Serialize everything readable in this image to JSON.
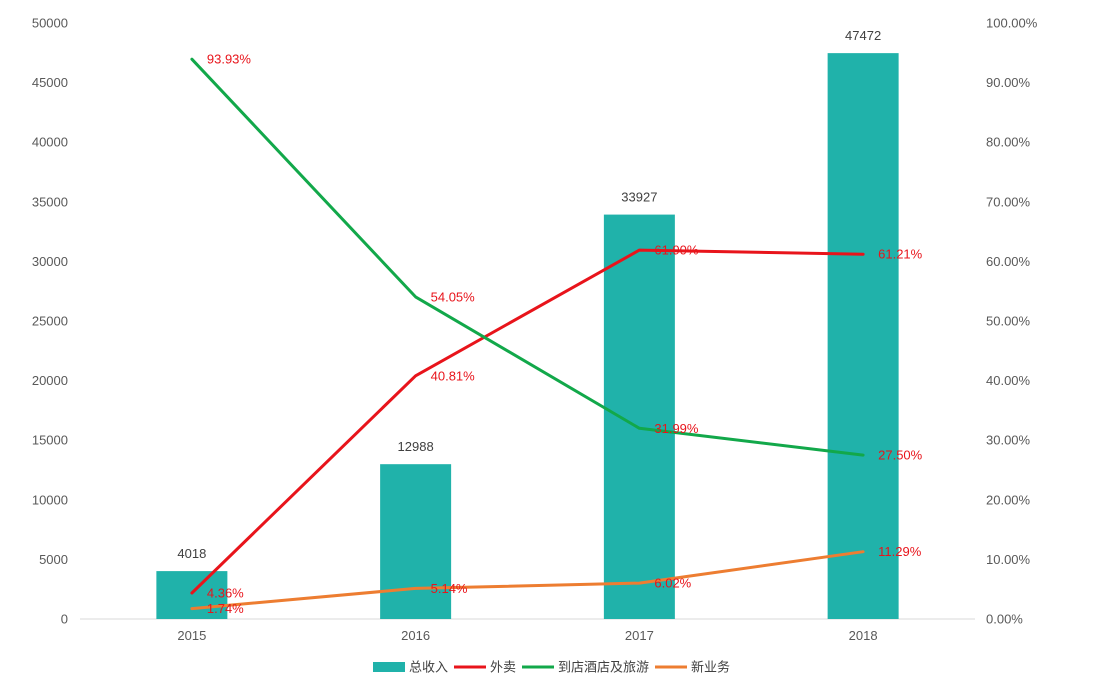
{
  "chart_data": {
    "type": "bar+line",
    "categories": [
      "2015",
      "2016",
      "2017",
      "2018"
    ],
    "bars": {
      "name": "总收入",
      "values": [
        4018,
        12988,
        33927,
        47472
      ],
      "labels": [
        "4018",
        "12988",
        "33927",
        "47472"
      ],
      "color": "#20b2aa"
    },
    "lines": [
      {
        "name": "外卖",
        "values": [
          4.36,
          40.81,
          61.9,
          61.21
        ],
        "labels": [
          "4.36%",
          "40.81%",
          "61.90%",
          "61.21%"
        ],
        "color": "#e8141b"
      },
      {
        "name": "到店酒店及旅游",
        "values": [
          93.93,
          54.05,
          31.99,
          27.5
        ],
        "labels": [
          "93.93%",
          "54.05%",
          "31.99%",
          "27.50%"
        ],
        "color": "#12a84a"
      },
      {
        "name": "新业务",
        "values": [
          1.74,
          5.14,
          6.02,
          11.29
        ],
        "labels": [
          "1.74%",
          "5.14%",
          "6.02%",
          "11.29%"
        ],
        "color": "#ed7d31"
      }
    ],
    "label_color": "#e8141b",
    "y_left": {
      "min": 0,
      "max": 50000,
      "step": 5000,
      "ticks": [
        "0",
        "5000",
        "10000",
        "15000",
        "20000",
        "25000",
        "30000",
        "35000",
        "40000",
        "45000",
        "50000"
      ]
    },
    "y_right": {
      "min": 0,
      "max": 100,
      "step": 10,
      "ticks": [
        "0.00%",
        "10.00%",
        "20.00%",
        "30.00%",
        "40.00%",
        "50.00%",
        "60.00%",
        "70.00%",
        "80.00%",
        "90.00%",
        "100.00%"
      ]
    },
    "grid": false,
    "legend_position": "bottom"
  }
}
